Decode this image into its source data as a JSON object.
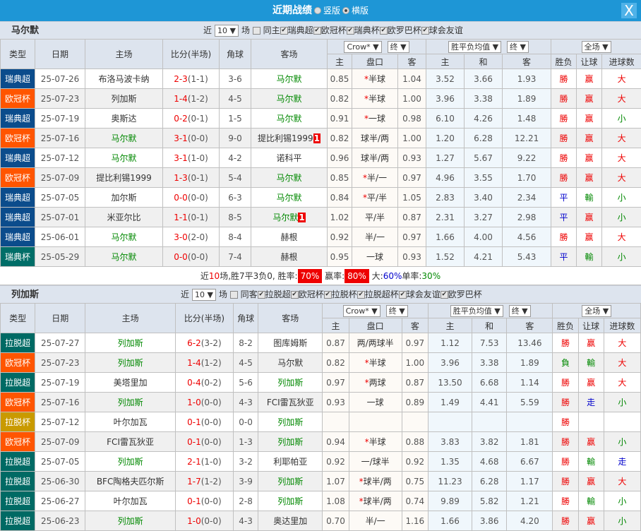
{
  "window": {
    "title": "近期战绩",
    "opt_vertical": "竖版",
    "opt_horizontal": "横版",
    "selected": "横版",
    "close": "X"
  },
  "colors": {
    "瑞典超": "#0b4c8c",
    "欧冠杯": "#ff5500",
    "瑞典杯": "#006e68",
    "拉脱超": "#006a64",
    "拉脱杯": "#c99a00"
  },
  "headers": {
    "type": "类型",
    "date": "日期",
    "home": "主场",
    "score": "比分(半场)",
    "corner": "角球",
    "away": "客场",
    "h": "主",
    "line": "盘口",
    "a": "客",
    "w": "主",
    "d": "和",
    "l": "客",
    "res": "胜负",
    "hcap": "让球",
    "ou": "进球数",
    "company": "Crow*",
    "final1": "终",
    "avg": "胜平负均值",
    "final2": "终",
    "scope": "全场"
  },
  "sections": [
    {
      "team": "马尔默",
      "near": "近",
      "count": "10",
      "unit": "场",
      "same": "同主",
      "leagues": [
        "瑞典超",
        "欧冠杯",
        "瑞典杯",
        "欧罗巴杯",
        "球会友谊"
      ],
      "rows": [
        {
          "type": "瑞典超",
          "date": "25-07-26",
          "home": "布洛马波卡纳",
          "score": "2-3",
          "half": "(1-1)",
          "corner": "3-6",
          "away": "马尔默",
          "team": "away",
          "h": "0.85",
          "line": "*半球",
          "a": "1.04",
          "w": "3.52",
          "d": "3.66",
          "l": "1.93",
          "res": "勝",
          "hcap": "赢",
          "ou": "大"
        },
        {
          "type": "欧冠杯",
          "date": "25-07-23",
          "home": "列加斯",
          "score": "1-4",
          "half": "(1-2)",
          "corner": "4-5",
          "away": "马尔默",
          "team": "away",
          "h": "0.82",
          "line": "*半球",
          "a": "1.00",
          "w": "3.96",
          "d": "3.38",
          "l": "1.89",
          "res": "勝",
          "hcap": "赢",
          "ou": "大"
        },
        {
          "type": "瑞典超",
          "date": "25-07-19",
          "home": "奥斯达",
          "score": "0-2",
          "half": "(0-1)",
          "corner": "1-5",
          "away": "马尔默",
          "team": "away",
          "h": "0.91",
          "line": "*一球",
          "a": "0.98",
          "w": "6.10",
          "d": "4.26",
          "l": "1.48",
          "res": "勝",
          "hcap": "赢",
          "ou": "小"
        },
        {
          "type": "欧冠杯",
          "date": "25-07-16",
          "home": "马尔默",
          "score": "3-1",
          "half": "(0-0)",
          "corner": "9-0",
          "away": "提比利锡1999",
          "team": "home",
          "away_card": "1",
          "h": "0.82",
          "line": "球半/两",
          "a": "1.00",
          "w": "1.20",
          "d": "6.28",
          "l": "12.21",
          "res": "勝",
          "hcap": "赢",
          "ou": "大"
        },
        {
          "type": "瑞典超",
          "date": "25-07-12",
          "home": "马尔默",
          "score": "3-1",
          "half": "(1-0)",
          "corner": "4-2",
          "away": "诺科平",
          "team": "home",
          "h": "0.96",
          "line": "球半/两",
          "a": "0.93",
          "w": "1.27",
          "d": "5.67",
          "l": "9.22",
          "res": "勝",
          "hcap": "赢",
          "ou": "大"
        },
        {
          "type": "欧冠杯",
          "date": "25-07-09",
          "home": "提比利锡1999",
          "score": "1-3",
          "half": "(0-1)",
          "corner": "5-4",
          "away": "马尔默",
          "team": "away",
          "h": "0.85",
          "line": "*半/一",
          "a": "0.97",
          "w": "4.96",
          "d": "3.55",
          "l": "1.70",
          "res": "勝",
          "hcap": "赢",
          "ou": "大"
        },
        {
          "type": "瑞典超",
          "date": "25-07-05",
          "home": "加尔斯",
          "score": "0-0",
          "half": "(0-0)",
          "corner": "6-3",
          "away": "马尔默",
          "team": "away",
          "h": "0.84",
          "line": "*平/半",
          "a": "1.05",
          "w": "2.83",
          "d": "3.40",
          "l": "2.34",
          "res": "平",
          "hcap": "輸",
          "ou": "小"
        },
        {
          "type": "瑞典超",
          "date": "25-07-01",
          "home": "米亚尔比",
          "score": "1-1",
          "half": "(0-1)",
          "corner": "8-5",
          "away": "马尔默",
          "team": "away",
          "away_card": "1",
          "h": "1.02",
          "line": "平/半",
          "a": "0.87",
          "w": "2.31",
          "d": "3.27",
          "l": "2.98",
          "res": "平",
          "hcap": "赢",
          "ou": "小"
        },
        {
          "type": "瑞典超",
          "date": "25-06-01",
          "home": "马尔默",
          "score": "3-0",
          "half": "(2-0)",
          "corner": "8-4",
          "away": "赫根",
          "team": "home",
          "h": "0.92",
          "line": "半/一",
          "a": "0.97",
          "w": "1.66",
          "d": "4.00",
          "l": "4.56",
          "res": "勝",
          "hcap": "赢",
          "ou": "大"
        },
        {
          "type": "瑞典杯",
          "date": "25-05-29",
          "home": "马尔默",
          "score": "0-0",
          "half": "(0-0)",
          "corner": "7-4",
          "away": "赫根",
          "team": "home",
          "h": "0.95",
          "line": "一球",
          "a": "0.93",
          "w": "1.52",
          "d": "4.21",
          "l": "5.43",
          "res": "平",
          "hcap": "輸",
          "ou": "小"
        }
      ],
      "summary": {
        "p1": "近",
        "n": "10",
        "p2": "场,胜7平3负0, 胜率:",
        "win": "70%",
        "p3": "赢率:",
        "hwin": "80%",
        "p4": "大:",
        "big": "60%",
        "p5": "单率:",
        "odd": "30%"
      }
    },
    {
      "team": "列加斯",
      "near": "近",
      "count": "10",
      "unit": "场",
      "same": "同客",
      "leagues": [
        "拉脱超",
        "欧冠杯",
        "拉脱杯",
        "拉脱超杯",
        "球会友谊",
        "欧罗巴杯"
      ],
      "rows": [
        {
          "type": "拉脱超",
          "date": "25-07-27",
          "home": "列加斯",
          "score": "6-2",
          "half": "(3-2)",
          "corner": "8-2",
          "away": "图库姆斯",
          "team": "home",
          "h": "0.87",
          "line": "两/两球半",
          "a": "0.97",
          "w": "1.12",
          "d": "7.53",
          "l": "13.46",
          "res": "勝",
          "hcap": "赢",
          "ou": "大"
        },
        {
          "type": "欧冠杯",
          "date": "25-07-23",
          "home": "列加斯",
          "score": "1-4",
          "half": "(1-2)",
          "corner": "4-5",
          "away": "马尔默",
          "team": "home",
          "h": "0.82",
          "line": "*半球",
          "a": "1.00",
          "w": "3.96",
          "d": "3.38",
          "l": "1.89",
          "res": "負",
          "hcap": "輸",
          "ou": "大"
        },
        {
          "type": "拉脱超",
          "date": "25-07-19",
          "home": "美塔里加",
          "score": "0-4",
          "half": "(0-2)",
          "corner": "5-6",
          "away": "列加斯",
          "team": "away",
          "h": "0.97",
          "line": "*两球",
          "a": "0.87",
          "w": "13.50",
          "d": "6.68",
          "l": "1.14",
          "res": "勝",
          "hcap": "赢",
          "ou": "大"
        },
        {
          "type": "欧冠杯",
          "date": "25-07-16",
          "home": "列加斯",
          "score": "1-0",
          "half": "(0-0)",
          "corner": "4-3",
          "away": "FCI雷瓦狄亚",
          "team": "home",
          "h": "0.93",
          "line": "一球",
          "a": "0.89",
          "w": "1.49",
          "d": "4.41",
          "l": "5.59",
          "res": "勝",
          "hcap": "走",
          "ou": "小"
        },
        {
          "type": "拉脱杯",
          "date": "25-07-12",
          "home": "叶尔加瓦",
          "score": "0-1",
          "half": "(0-0)",
          "corner": "0-0",
          "away": "列加斯",
          "team": "away",
          "h": "",
          "line": "",
          "a": "",
          "w": "",
          "d": "",
          "l": "",
          "res": "勝",
          "hcap": "",
          "ou": ""
        },
        {
          "type": "欧冠杯",
          "date": "25-07-09",
          "home": "FCI雷瓦狄亚",
          "score": "0-1",
          "half": "(0-0)",
          "corner": "1-3",
          "away": "列加斯",
          "team": "away",
          "h": "0.94",
          "line": "*半球",
          "a": "0.88",
          "w": "3.83",
          "d": "3.82",
          "l": "1.81",
          "res": "勝",
          "hcap": "赢",
          "ou": "小"
        },
        {
          "type": "拉脱超",
          "date": "25-07-05",
          "home": "列加斯",
          "score": "2-1",
          "half": "(1-0)",
          "corner": "3-2",
          "away": "利耶帕亚",
          "team": "home",
          "h": "0.92",
          "line": "一/球半",
          "a": "0.92",
          "w": "1.35",
          "d": "4.68",
          "l": "6.67",
          "res": "勝",
          "hcap": "輸",
          "ou": "走"
        },
        {
          "type": "拉脱超",
          "date": "25-06-30",
          "home": "BFC陶格夫匹尔斯",
          "score": "1-7",
          "half": "(1-2)",
          "corner": "3-9",
          "away": "列加斯",
          "team": "away",
          "h": "1.07",
          "line": "*球半/两",
          "a": "0.75",
          "w": "11.23",
          "d": "6.28",
          "l": "1.17",
          "res": "勝",
          "hcap": "赢",
          "ou": "大"
        },
        {
          "type": "拉脱超",
          "date": "25-06-27",
          "home": "叶尔加瓦",
          "score": "0-1",
          "half": "(0-0)",
          "corner": "2-8",
          "away": "列加斯",
          "team": "away",
          "h": "1.08",
          "line": "*球半/两",
          "a": "0.74",
          "w": "9.89",
          "d": "5.82",
          "l": "1.21",
          "res": "勝",
          "hcap": "輸",
          "ou": "小"
        },
        {
          "type": "拉脱超",
          "date": "25-06-23",
          "home": "列加斯",
          "score": "1-0",
          "half": "(0-0)",
          "corner": "4-3",
          "away": "奥达里加",
          "team": "home",
          "h": "0.70",
          "line": "半/一",
          "a": "1.16",
          "w": "1.66",
          "d": "3.86",
          "l": "4.20",
          "res": "勝",
          "hcap": "赢",
          "ou": "小"
        }
      ]
    }
  ]
}
